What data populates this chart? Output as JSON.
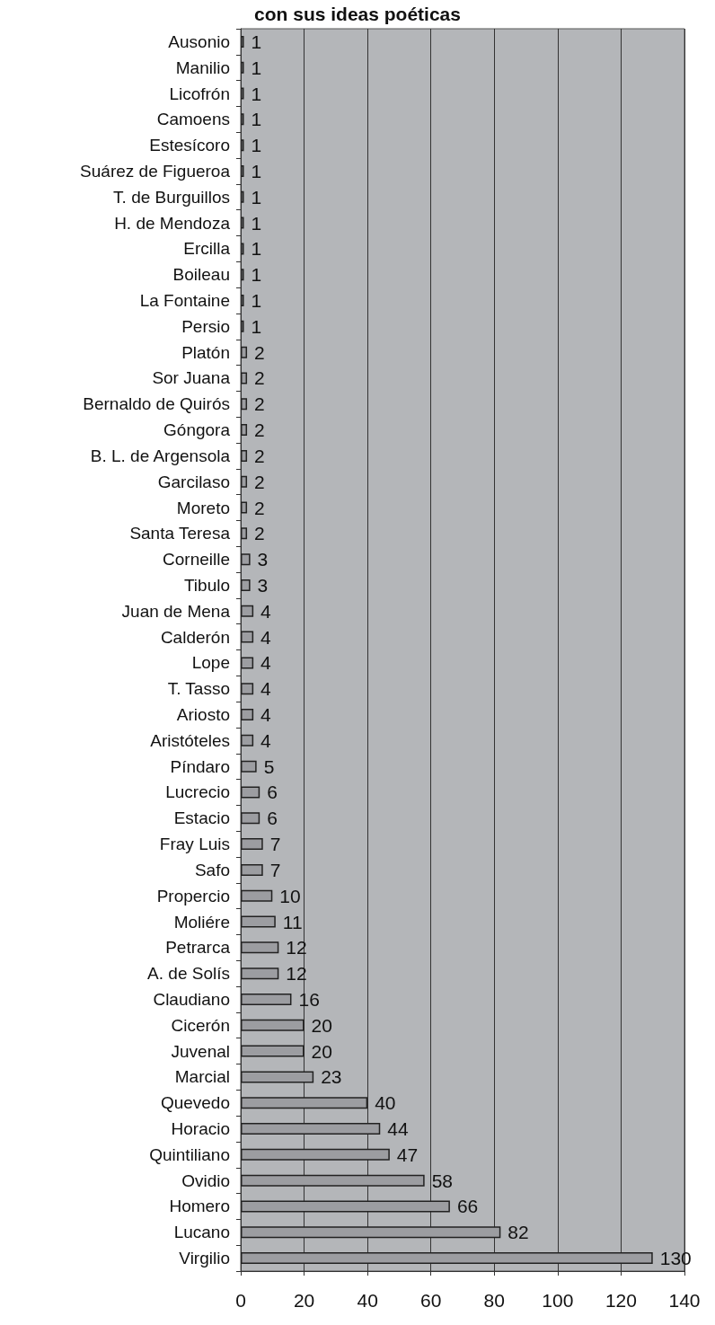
{
  "chart_data": {
    "type": "bar",
    "orientation": "horizontal",
    "title": "con sus ideas poéticas",
    "categories": [
      "Ausonio",
      "Manilio",
      "Licofrón",
      "Camoens",
      "Estesícoro",
      "Suárez de Figueroa",
      "T. de Burguillos",
      "H. de Mendoza",
      "Ercilla",
      "Boileau",
      "La Fontaine",
      "Persio",
      "Platón",
      "Sor Juana",
      "Bernaldo de Quirós",
      "Góngora",
      "B. L. de Argensola",
      "Garcilaso",
      "Moreto",
      "Santa Teresa",
      "Corneille",
      "Tibulo",
      "Juan de Mena",
      "Calderón",
      "Lope",
      "T. Tasso",
      "Ariosto",
      "Aristóteles",
      "Píndaro",
      "Lucrecio",
      "Estacio",
      "Fray Luis",
      "Safo",
      "Propercio",
      "Moliére",
      "Petrarca",
      "A. de Solís",
      "Claudiano",
      "Cicerón",
      "Juvenal",
      "Marcial",
      "Quevedo",
      "Horacio",
      "Quintiliano",
      "Ovidio",
      "Homero",
      "Lucano",
      "Virgilio"
    ],
    "values": [
      1,
      1,
      1,
      1,
      1,
      1,
      1,
      1,
      1,
      1,
      1,
      1,
      2,
      2,
      2,
      2,
      2,
      2,
      2,
      2,
      3,
      3,
      4,
      4,
      4,
      4,
      4,
      4,
      5,
      6,
      6,
      7,
      7,
      10,
      11,
      12,
      12,
      16,
      20,
      20,
      23,
      40,
      44,
      47,
      58,
      66,
      82,
      130
    ],
    "color": "#9c9da1",
    "xlim": [
      0,
      140
    ],
    "xticks": [
      0,
      20,
      40,
      60,
      80,
      100,
      120,
      140
    ],
    "grid": "x",
    "data_labels": true
  }
}
